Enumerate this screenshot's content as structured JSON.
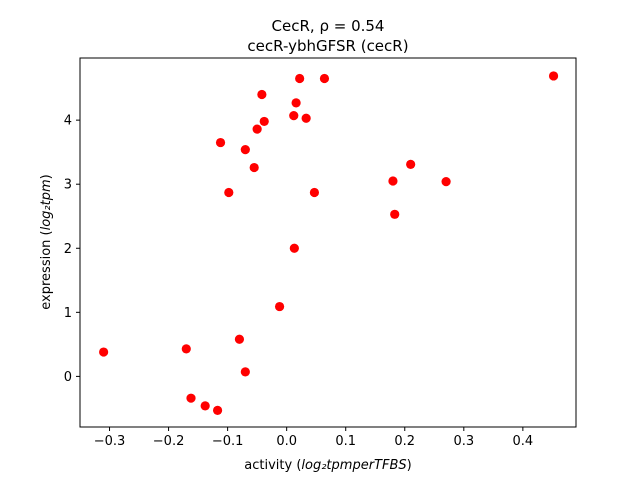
{
  "chart_data": {
    "type": "scatter",
    "title": "CecR, ρ = 0.54",
    "subtitle": "cecR-ybhGFSR (cecR)",
    "xlabel_prefix": "activity (",
    "xlabel_math": "log₂tpmperTFBS",
    "xlabel_suffix": ")",
    "ylabel_prefix": "expression (",
    "ylabel_math": "log₂tpm",
    "ylabel_suffix": ")",
    "xlim": [
      -0.35,
      0.49
    ],
    "ylim": [
      -0.79,
      4.97
    ],
    "xticks": [
      -0.3,
      -0.2,
      -0.1,
      0.0,
      0.1,
      0.2,
      0.3,
      0.4
    ],
    "xtick_labels": [
      "−0.3",
      "−0.2",
      "−0.1",
      "0.0",
      "0.1",
      "0.2",
      "0.3",
      "0.4"
    ],
    "yticks": [
      0,
      1,
      2,
      3,
      4
    ],
    "ytick_labels": [
      "0",
      "1",
      "2",
      "3",
      "4"
    ],
    "grid": false,
    "marker_color": "#ff0000",
    "points": [
      {
        "x": -0.31,
        "y": 0.38
      },
      {
        "x": -0.17,
        "y": 0.43
      },
      {
        "x": -0.162,
        "y": -0.34
      },
      {
        "x": -0.138,
        "y": -0.46
      },
      {
        "x": -0.117,
        "y": -0.53
      },
      {
        "x": -0.08,
        "y": 0.58
      },
      {
        "x": -0.07,
        "y": 0.07
      },
      {
        "x": -0.012,
        "y": 1.09
      },
      {
        "x": 0.013,
        "y": 2.0
      },
      {
        "x": -0.112,
        "y": 3.65
      },
      {
        "x": -0.098,
        "y": 2.87
      },
      {
        "x": -0.07,
        "y": 3.54
      },
      {
        "x": -0.055,
        "y": 3.26
      },
      {
        "x": -0.05,
        "y": 3.86
      },
      {
        "x": -0.042,
        "y": 4.4
      },
      {
        "x": -0.038,
        "y": 3.98
      },
      {
        "x": 0.012,
        "y": 4.07
      },
      {
        "x": 0.016,
        "y": 4.27
      },
      {
        "x": 0.022,
        "y": 4.65
      },
      {
        "x": 0.033,
        "y": 4.03
      },
      {
        "x": 0.047,
        "y": 2.87
      },
      {
        "x": 0.064,
        "y": 4.65
      },
      {
        "x": 0.18,
        "y": 3.05
      },
      {
        "x": 0.183,
        "y": 2.53
      },
      {
        "x": 0.21,
        "y": 3.31
      },
      {
        "x": 0.27,
        "y": 3.04
      },
      {
        "x": 0.452,
        "y": 4.69
      }
    ]
  }
}
